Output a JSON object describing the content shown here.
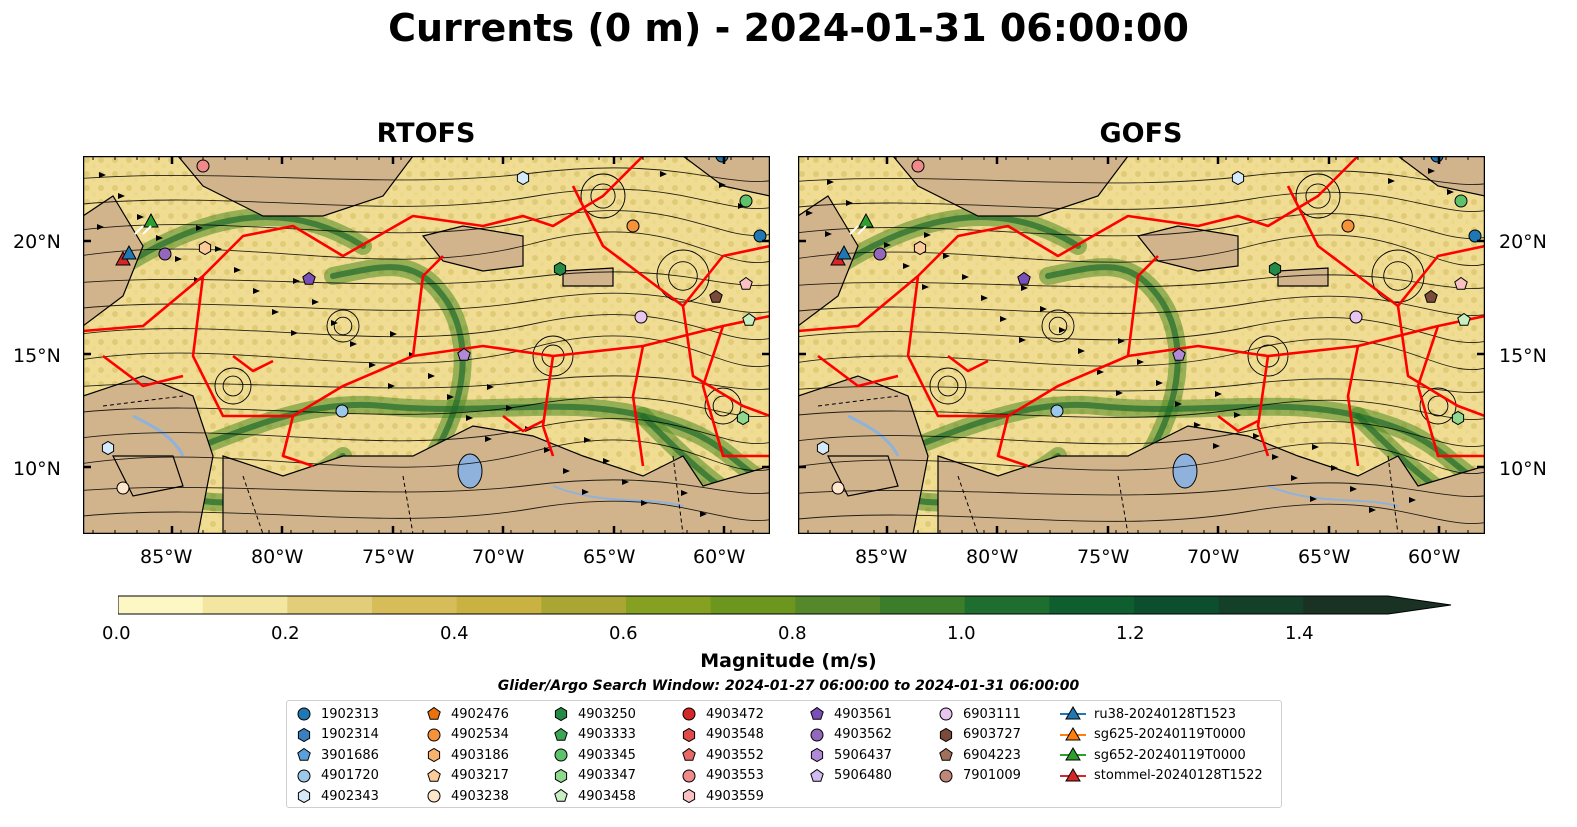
{
  "figure": {
    "title": "Currents (0 m) - 2024-01-31 06:00:00",
    "panels": [
      {
        "title": "RTOFS"
      },
      {
        "title": "GOFS"
      }
    ]
  },
  "map": {
    "lon_ticks": [
      "85°W",
      "80°W",
      "75°W",
      "70°W",
      "65°W",
      "60°W"
    ],
    "lat_ticks": [
      "20°N",
      "15°N",
      "10°N"
    ],
    "extent": {
      "lon": [
        -89,
        -58
      ],
      "lat": [
        7,
        24
      ]
    },
    "colors": {
      "land": "#d2b48c",
      "lake": "#8fb2dc",
      "eez_lines": "#ff0000",
      "streamlines": "#000000"
    }
  },
  "colorbar": {
    "label": "Magnitude (m/s)",
    "ticks": [
      "0.0",
      "0.2",
      "0.4",
      "0.6",
      "0.8",
      "1.0",
      "1.2",
      "1.4"
    ],
    "range": [
      0,
      1.5
    ],
    "extend": "max",
    "colors": [
      "#fdf7c3",
      "#f3e6a1",
      "#e2cd7a",
      "#d6bd59",
      "#c9b142",
      "#a9a633",
      "#86a021",
      "#6d961e",
      "#55882a",
      "#3b7d2a",
      "#1e6e30",
      "#0f5e30",
      "#0c4e2d",
      "#144029",
      "#193223"
    ]
  },
  "search_window": "Glider/Argo Search Window: 2024-01-27 06:00:00 to 2024-01-31 06:00:00",
  "legend": {
    "columns": [
      [
        {
          "label": "1902313",
          "marker": "circle",
          "color": "#1f77b4"
        },
        {
          "label": "1902314",
          "marker": "hexagon",
          "color": "#3a7fc0"
        },
        {
          "label": "3901686",
          "marker": "pentagon",
          "color": "#5aa0dc"
        },
        {
          "label": "4901720",
          "marker": "circle",
          "color": "#9cc8ec"
        },
        {
          "label": "4902343",
          "marker": "hexagon",
          "color": "#d4eafa"
        }
      ],
      [
        {
          "label": "4902476",
          "marker": "pentagon",
          "color": "#e8730e"
        },
        {
          "label": "4902534",
          "marker": "circle",
          "color": "#f5923a"
        },
        {
          "label": "4903186",
          "marker": "hexagon",
          "color": "#f8b26e"
        },
        {
          "label": "4903217",
          "marker": "pentagon",
          "color": "#fbcb9a"
        },
        {
          "label": "4903238",
          "marker": "circle",
          "color": "#fde6cc"
        }
      ],
      [
        {
          "label": "4903250",
          "marker": "hexagon",
          "color": "#238b45"
        },
        {
          "label": "4903333",
          "marker": "pentagon",
          "color": "#3aa656"
        },
        {
          "label": "4903345",
          "marker": "circle",
          "color": "#5fc26a"
        },
        {
          "label": "4903347",
          "marker": "hexagon",
          "color": "#8fd98f"
        },
        {
          "label": "4903458",
          "marker": "pentagon",
          "color": "#c7efc0"
        }
      ],
      [
        {
          "label": "4903472",
          "marker": "circle",
          "color": "#d62728"
        },
        {
          "label": "4903548",
          "marker": "hexagon",
          "color": "#e04a4a"
        },
        {
          "label": "4903552",
          "marker": "pentagon",
          "color": "#e86868"
        },
        {
          "label": "4903553",
          "marker": "circle",
          "color": "#f08a8a"
        },
        {
          "label": "4903559",
          "marker": "hexagon",
          "color": "#f9c1c1"
        }
      ],
      [
        {
          "label": "4903561",
          "marker": "pentagon",
          "color": "#7b4fb8"
        },
        {
          "label": "4903562",
          "marker": "circle",
          "color": "#9467bd"
        },
        {
          "label": "5906437",
          "marker": "hexagon",
          "color": "#b08ad6"
        },
        {
          "label": "5906480",
          "marker": "pentagon",
          "color": "#d2bbee"
        }
      ],
      [
        {
          "label": "6903111",
          "marker": "circle",
          "color": "#e8c6f0"
        },
        {
          "label": "6903727",
          "marker": "hexagon",
          "color": "#7a4a3a"
        },
        {
          "label": "6904223",
          "marker": "pentagon",
          "color": "#a0705c"
        },
        {
          "label": "7901009",
          "marker": "circle",
          "color": "#c0867a"
        }
      ],
      [
        {
          "label": "ru38-20240128T1523",
          "marker": "triangle-line",
          "color": "#1f77b4"
        },
        {
          "label": "sg625-20240119T0000",
          "marker": "triangle-line",
          "color": "#ff7f0e"
        },
        {
          "label": "sg652-20240119T0000",
          "marker": "triangle-line",
          "color": "#2ca02c"
        },
        {
          "label": "stommel-20240128T1522",
          "marker": "triangle-line",
          "color": "#d62728"
        }
      ]
    ]
  }
}
